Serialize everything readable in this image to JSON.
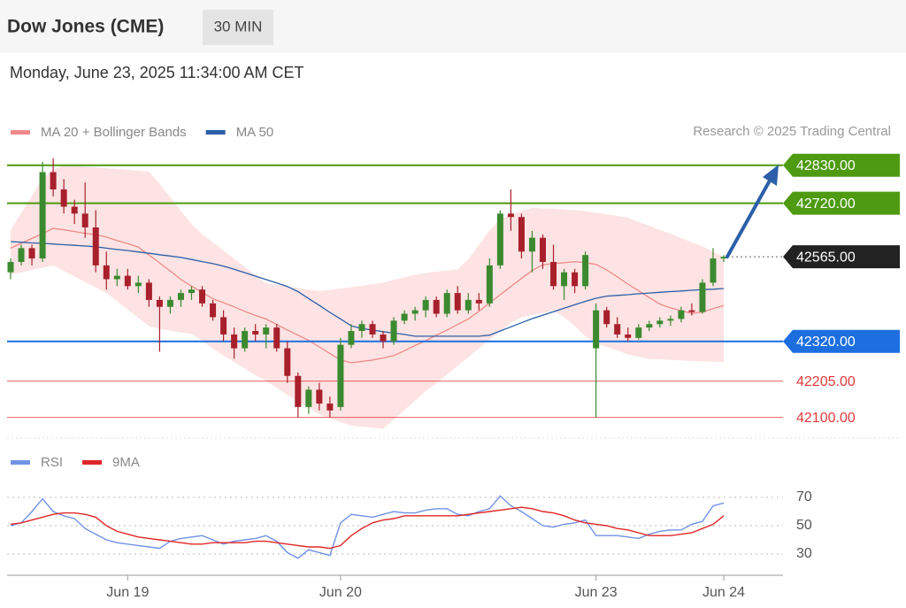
{
  "chart_data": {
    "type": "candlestick",
    "title": "Dow Jones (CME)",
    "interval": "30 MIN",
    "subtitle": "Monday, June 23, 2025 11:34:00 AM CET",
    "source": "Research © 2025 Trading Central",
    "categories": [
      null,
      null,
      null,
      null,
      null,
      null,
      null,
      null,
      null,
      null,
      null,
      "Jun 19",
      null,
      null,
      null,
      null,
      null,
      null,
      null,
      null,
      null,
      null,
      null,
      null,
      null,
      null,
      null,
      null,
      null,
      null,
      null,
      "Jun 20",
      null,
      null,
      null,
      null,
      null,
      null,
      null,
      null,
      null,
      null,
      null,
      null,
      null,
      null,
      null,
      null,
      null,
      null,
      null,
      null,
      null,
      null,
      null,
      "Jun 23",
      null,
      null,
      null,
      null,
      null,
      null,
      null,
      null,
      null,
      null,
      null,
      "Jun 24"
    ],
    "open": [
      42520,
      42550,
      42590,
      42560,
      42810,
      42760,
      42710,
      42690,
      42650,
      42540,
      42500,
      42510,
      42480,
      42490,
      42440,
      42420,
      42440,
      42460,
      42470,
      42430,
      42390,
      42340,
      42300,
      42350,
      42340,
      42360,
      42300,
      42220,
      42130,
      42180,
      42140,
      42130,
      42310,
      42350,
      42370,
      42340,
      42320,
      42380,
      42400,
      42410,
      42440,
      42400,
      42460,
      42410,
      42440,
      42430,
      42540,
      42690,
      42680,
      42580,
      42620,
      42550,
      42480,
      42520,
      42480,
      42300,
      42410,
      42370,
      42340,
      42330,
      42360,
      42370,
      42380,
      42385,
      42410,
      42405,
      42490,
      42560
    ],
    "high": [
      42560,
      42600,
      42600,
      42840,
      42850,
      42790,
      42730,
      42780,
      42700,
      42580,
      42530,
      42530,
      42510,
      42500,
      42450,
      42450,
      42470,
      42480,
      42480,
      42440,
      42410,
      42360,
      42360,
      42370,
      42370,
      42370,
      42320,
      42230,
      42190,
      42200,
      42160,
      42330,
      42370,
      42380,
      42380,
      42350,
      42390,
      42410,
      42420,
      42450,
      42450,
      42470,
      42480,
      42460,
      42460,
      42560,
      42700,
      42760,
      42690,
      42640,
      42630,
      42600,
      42530,
      42530,
      42580,
      42430,
      42420,
      42390,
      42360,
      42370,
      42380,
      42390,
      42395,
      42420,
      42430,
      42500,
      42590,
      42570
    ],
    "low": [
      42500,
      42540,
      42540,
      42550,
      42740,
      42690,
      42660,
      42620,
      42520,
      42470,
      42480,
      42470,
      42460,
      42420,
      42290,
      42400,
      42420,
      42440,
      42420,
      42380,
      42320,
      42270,
      42290,
      42320,
      42300,
      42290,
      42200,
      42100,
      42110,
      42120,
      42100,
      42120,
      42300,
      42330,
      42330,
      42300,
      42310,
      42370,
      42380,
      42390,
      42390,
      42390,
      42400,
      42400,
      42410,
      42420,
      42530,
      42640,
      42560,
      42520,
      42530,
      42470,
      42440,
      42460,
      42470,
      42100,
      42360,
      42330,
      42320,
      42325,
      42350,
      42360,
      42365,
      42375,
      42395,
      42400,
      42480,
      42550
    ],
    "close": [
      42550,
      42590,
      42560,
      42810,
      42760,
      42710,
      42690,
      42650,
      42540,
      42500,
      42510,
      42480,
      42490,
      42440,
      42420,
      42440,
      42460,
      42470,
      42430,
      42390,
      42340,
      42300,
      42350,
      42340,
      42360,
      42300,
      42220,
      42130,
      42180,
      42140,
      42120,
      42310,
      42350,
      42370,
      42340,
      42320,
      42380,
      42400,
      42410,
      42440,
      42400,
      42460,
      42410,
      42440,
      42430,
      42540,
      42690,
      42680,
      42580,
      42620,
      42550,
      42480,
      42520,
      42480,
      42570,
      42410,
      42370,
      42340,
      42330,
      42360,
      42370,
      42380,
      42385,
      42410,
      42405,
      42490,
      42560,
      42565
    ],
    "up_color": "#3b8a2f",
    "down_color": "#a8202c",
    "ylim": [
      42040,
      42860
    ],
    "overlays": [
      {
        "name": "MA 20 + Bollinger Bands",
        "color": "#f08a8a",
        "band_color": "#fde3e3",
        "values": [
          42590,
          42604,
          42618,
          42632,
          42647,
          42643,
          42638,
          42633,
          42629,
          42622,
          42612,
          42603,
          42593,
          42570,
          42547,
          42524,
          42499,
          42480,
          42462,
          42443,
          42432,
          42420,
          42407,
          42395,
          42385,
          42369,
          42353,
          42338,
          42323,
          42304,
          42285,
          42266,
          42258,
          42262,
          42266,
          42272,
          42279,
          42293,
          42308,
          42322,
          42338,
          42353,
          42369,
          42385,
          42407,
          42431,
          42455,
          42479,
          42502,
          42525,
          42542,
          42545,
          42548,
          42551,
          42548,
          42543,
          42527,
          42507,
          42486,
          42467,
          42447,
          42428,
          42417,
          42409,
          42401,
          42405,
          42415,
          42424
        ],
        "upper": [
          42642,
          42692,
          42742,
          42792,
          42816,
          42830,
          42828,
          42826,
          42824,
          42821,
          42819,
          42817,
          42814,
          42812,
          42776,
          42737,
          42698,
          42659,
          42631,
          42607,
          42583,
          42559,
          42535,
          42511,
          42488,
          42484,
          42479,
          42475,
          42470,
          42465,
          42469,
          42473,
          42477,
          42481,
          42485,
          42490,
          42498,
          42505,
          42513,
          42518,
          42522,
          42525,
          42529,
          42558,
          42599,
          42641,
          42674,
          42686,
          42697,
          42707,
          42705,
          42704,
          42702,
          42700,
          42697,
          42693,
          42688,
          42684,
          42678,
          42666,
          42655,
          42643,
          42632,
          42619,
          42607,
          42595,
          42580,
          42565
        ],
        "lower": [
          42514,
          42520,
          42527,
          42533,
          42540,
          42524,
          42508,
          42492,
          42476,
          42460,
          42436,
          42412,
          42388,
          42364,
          42356,
          42351,
          42346,
          42342,
          42321,
          42299,
          42279,
          42260,
          42241,
          42222,
          42206,
          42185,
          42165,
          42146,
          42128,
          42109,
          42096,
          42086,
          42076,
          42073,
          42070,
          42067,
          42093,
          42121,
          42148,
          42176,
          42199,
          42224,
          42249,
          42274,
          42300,
          42325,
          42349,
          42374,
          42390,
          42396,
          42402,
          42409,
          42390,
          42365,
          42335,
          42314,
          42304,
          42294,
          42282,
          42275,
          42269,
          42268,
          42266,
          42265,
          42263,
          42262,
          42261,
          42260
        ]
      },
      {
        "name": "MA 50",
        "color": "#2c5fa8",
        "values": [
          42609,
          42607,
          42605,
          42604,
          42602,
          42600,
          42598,
          42596,
          42594,
          42590,
          42586,
          42583,
          42579,
          42575,
          42571,
          42567,
          42563,
          42557,
          42551,
          42545,
          42538,
          42529,
          42519,
          42509,
          42499,
          42489,
          42479,
          42464,
          42444,
          42424,
          42404,
          42385,
          42365,
          42357,
          42353,
          42348,
          42344,
          42340,
          42335,
          42335,
          42335,
          42335,
          42335,
          42335,
          42335,
          42338,
          42350,
          42362,
          42374,
          42386,
          42396,
          42406,
          42416,
          42426,
          42436,
          42445,
          42451,
          42453,
          42455,
          42458,
          42460,
          42462,
          42464,
          42466,
          42468,
          42470,
          42471,
          42473
        ]
      }
    ],
    "levels": [
      {
        "value": 42830,
        "label": "42830.00",
        "color": "#4e9a10",
        "style": "box",
        "line": "solid"
      },
      {
        "value": 42720,
        "label": "42720.00",
        "color": "#4e9a10",
        "style": "box",
        "line": "solid"
      },
      {
        "value": 42565,
        "label": "42565.00",
        "color": "#222222",
        "style": "box",
        "line": "dotted"
      },
      {
        "value": 42320,
        "label": "42320.00",
        "color": "#1d6fe0",
        "style": "box",
        "line": "solid"
      },
      {
        "value": 42205,
        "label": "42205.00",
        "color": "#e0393b",
        "style": "plain",
        "line": "thin"
      },
      {
        "value": 42100,
        "label": "42100.00",
        "color": "#e0393b",
        "style": "plain",
        "line": "thin"
      }
    ],
    "rsi": {
      "ylim": [
        20,
        80
      ],
      "yticks": [
        30,
        50,
        70
      ],
      "series": [
        {
          "name": "RSI",
          "color": "#7092e4",
          "values": [
            50,
            52,
            60,
            69,
            60,
            57,
            55,
            48,
            44,
            40,
            38,
            37,
            36,
            35,
            34,
            39,
            41,
            42,
            43,
            40,
            37,
            39,
            40,
            41,
            43,
            39,
            31,
            27,
            33,
            31,
            29,
            52,
            58,
            57,
            56,
            58,
            60,
            59,
            59,
            61,
            62,
            62,
            58,
            57,
            60,
            62,
            71,
            64,
            60,
            55,
            50,
            49,
            51,
            52,
            54,
            43,
            43,
            43,
            42,
            41,
            44,
            46,
            47,
            47,
            51,
            53,
            64,
            66
          ]
        },
        {
          "name": "9MA",
          "color": "#e02626",
          "values": [
            51,
            52,
            54,
            56,
            58,
            59,
            59,
            58,
            56,
            50,
            46,
            44,
            42,
            41,
            40,
            39,
            38,
            37,
            37,
            38,
            38,
            38,
            38,
            39,
            39,
            38,
            37,
            36,
            35,
            35,
            34,
            36,
            43,
            48,
            52,
            54,
            55,
            57,
            57,
            57,
            57,
            57,
            57,
            58,
            59,
            60,
            61,
            62,
            63,
            62,
            60,
            59,
            57,
            54,
            52,
            51,
            50,
            48,
            47,
            45,
            43,
            43,
            43,
            44,
            45,
            48,
            51,
            57
          ]
        }
      ]
    }
  }
}
